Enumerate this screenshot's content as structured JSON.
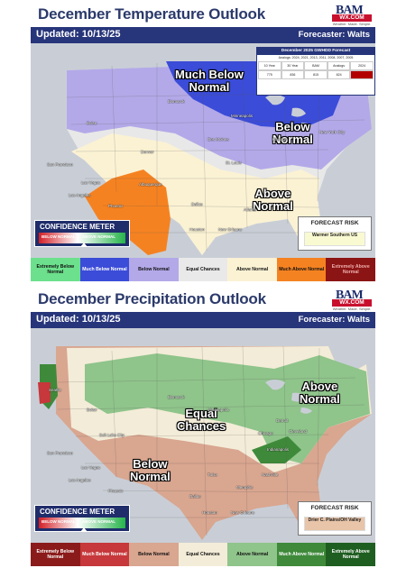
{
  "temp": {
    "title": "December Temperature Outlook",
    "updated": "Updated: 10/13/25",
    "forecaster": "Forecaster: Walts",
    "logo": {
      "brand": "BAM",
      "site": "WX.COM",
      "tagline": "Weather. Made. Simple."
    },
    "gwhdd": {
      "title": "December 2025 GWHDD Forecast",
      "analogs": "Analogs: 2024, 2021, 2013, 2011, 2008, 2007, 2005",
      "headers": [
        "10 Year",
        "30 Year",
        "BAM",
        "Analogs",
        "2024"
      ],
      "values": [
        "775",
        "836",
        "815",
        "824",
        "810"
      ]
    },
    "labels": {
      "much_below": [
        "Much Below",
        "Normal"
      ],
      "below": [
        "Below",
        "Normal"
      ],
      "above": [
        "Above",
        "Normal"
      ]
    },
    "confidence": {
      "title": "CONFIDENCE METER",
      "left": "BELOW NORMAL",
      "right": "ABOVE NORMAL"
    },
    "risk": {
      "title": "FORECAST RISK",
      "value": "Warmer Southern US"
    },
    "legend": [
      "Extremely Below Normal",
      "Much Below Normal",
      "Below Normal",
      "Equal Chances",
      "Above Normal",
      "Much Above Normal",
      "Extremely Above Normal"
    ],
    "legend_colors": [
      "#6ce08c",
      "#3b4cd8",
      "#b3a9e8",
      "#e9e9e9",
      "#fbf2d4",
      "#f58221",
      "#8b1414"
    ]
  },
  "precip": {
    "title": "December Precipitation Outlook",
    "updated": "Updated: 10/13/25",
    "forecaster": "Forecaster: Walts",
    "logo": {
      "brand": "BAM",
      "site": "WX.COM",
      "tagline": "Weather. Made. Simple."
    },
    "labels": {
      "above": [
        "Above",
        "Normal"
      ],
      "equal": [
        "Equal",
        "Chances"
      ],
      "below": [
        "Below",
        "Normal"
      ]
    },
    "confidence": {
      "title": "CONFIDENCE METER",
      "left": "BELOW NORMAL",
      "right": "ABOVE NORMAL"
    },
    "risk": {
      "title": "FORECAST RISK",
      "value": "Drier C. Plains/OH Valley"
    },
    "legend": [
      "Extremely Below Normal",
      "Much Below Normal",
      "Below Normal",
      "Equal Chances",
      "Above Normal",
      "Much Above Normal",
      "Extremely Above Normal"
    ],
    "legend_colors": [
      "#8b1b1b",
      "#c6383b",
      "#d9a690",
      "#f3ecd8",
      "#8fc48b",
      "#3e8a3a",
      "#1f5e21"
    ]
  },
  "cities": [
    "Seattle",
    "Boise",
    "Bismarck",
    "Minneapolis",
    "Chicago",
    "Detroit",
    "Denver",
    "Des Moines",
    "Salt Lake City",
    "Indianapolis",
    "San Francisco",
    "Las Vegas",
    "St. Louis",
    "Nashville",
    "New York City",
    "Los Angeles",
    "Phoenix",
    "Albuquerque",
    "Dallas",
    "Memphis",
    "Atlanta",
    "Houston",
    "New Orleans",
    "Tulsa",
    "Cleveland"
  ]
}
